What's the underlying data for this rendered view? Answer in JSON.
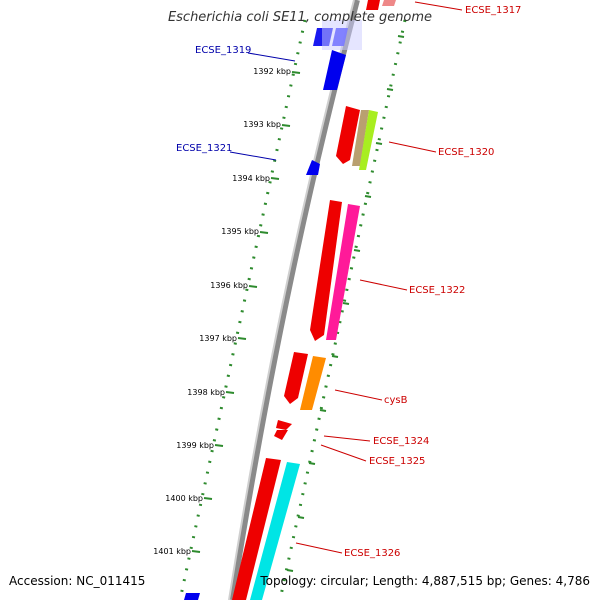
{
  "map": {
    "title": "Escherichia coli SE11, complete genome",
    "accession": "Accession: NC_011415",
    "topology": "Topology: circular; Length: 4,887,515 bp; Genes: 4,786"
  },
  "kbp_ticks": [
    "1392 kbp",
    "1393 kbp",
    "1394 kbp",
    "1395 kbp",
    "1396 kbp",
    "1397 kbp",
    "1398 kbp",
    "1399 kbp",
    "1400 kbp",
    "1401 kbp"
  ],
  "colors": {
    "backbone": "#8a8a8a",
    "tick_green": "#2e8b2e",
    "forward_label": "#0000aa",
    "reverse_label": "#cc0000",
    "forward_gene": "#0000ee",
    "reverse_gene": "#ee0000"
  },
  "gene_labels": {
    "ECSE_1317": "ECSE_1317",
    "ECSE_1319": "ECSE_1319",
    "ECSE_1320": "ECSE_1320",
    "ECSE_1321": "ECSE_1321",
    "ECSE_1322": "ECSE_1322",
    "cysB": "cysB",
    "ECSE_1324": "ECSE_1324",
    "ECSE_1325": "ECSE_1325",
    "ECSE_1326": "ECSE_1326"
  }
}
